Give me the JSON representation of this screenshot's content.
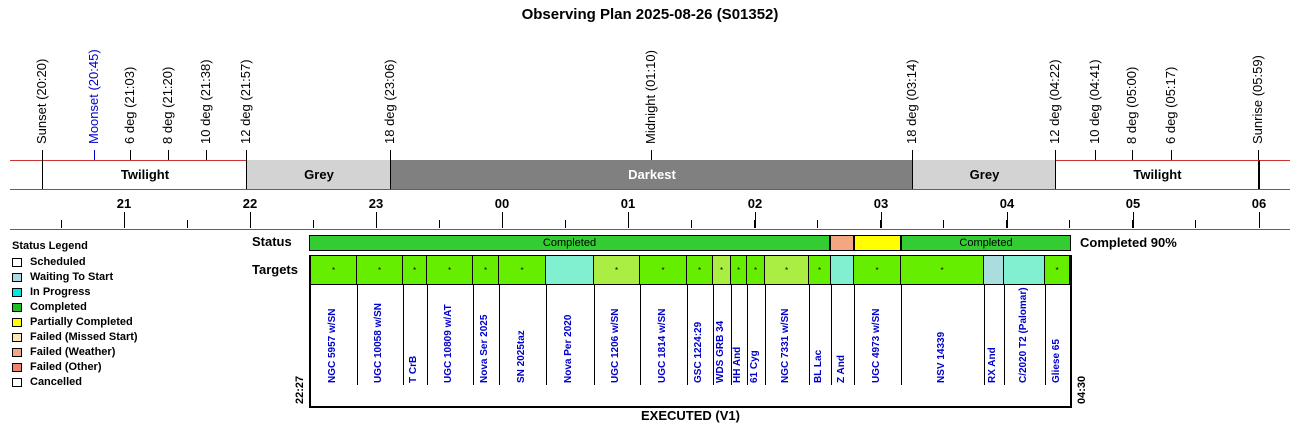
{
  "title": "Observing Plan 2025-08-26 (S01352)",
  "events": [
    {
      "label": "Sunset (20:20)",
      "color": "#000000"
    },
    {
      "label": "Moonset (20:45)",
      "color": "#0000cc"
    },
    {
      "label": "6 deg (21:03)",
      "color": "#000000"
    },
    {
      "label": "8 deg (21:20)",
      "color": "#000000"
    },
    {
      "label": "10 deg (21:38)",
      "color": "#000000"
    },
    {
      "label": "12 deg (21:57)",
      "color": "#000000"
    },
    {
      "label": "18 deg (23:06)",
      "color": "#000000"
    },
    {
      "label": "Midnight (01:10)",
      "color": "#000000"
    },
    {
      "label": "18 deg (03:14)",
      "color": "#000000"
    },
    {
      "label": "12 deg (04:22)",
      "color": "#000000"
    },
    {
      "label": "10 deg (04:41)",
      "color": "#000000"
    },
    {
      "label": "8 deg (05:00)",
      "color": "#000000"
    },
    {
      "label": "6 deg (05:17)",
      "color": "#000000"
    },
    {
      "label": "Sunrise (05:59)",
      "color": "#000000"
    }
  ],
  "bands": [
    {
      "label": "Twilight",
      "color": "#ffffff",
      "text": "#000000"
    },
    {
      "label": "Grey",
      "color": "#d3d3d3",
      "text": "#000000"
    },
    {
      "label": "Darkest",
      "color": "#808080",
      "text": "#ffffff"
    },
    {
      "label": "Grey",
      "color": "#d3d3d3",
      "text": "#000000"
    },
    {
      "label": "Twilight",
      "color": "#ffffff",
      "text": "#000000"
    }
  ],
  "hours": [
    "21",
    "22",
    "23",
    "00",
    "01",
    "02",
    "03",
    "04",
    "05",
    "06"
  ],
  "legend": {
    "title": "Status Legend",
    "items": [
      {
        "label": "Scheduled",
        "color": "#ffffff"
      },
      {
        "label": "Waiting To Start",
        "color": "#add8e6"
      },
      {
        "label": "In Progress",
        "color": "#00e5e5"
      },
      {
        "label": "Completed",
        "color": "#22bb22"
      },
      {
        "label": "Partially Completed",
        "color": "#ffff00"
      },
      {
        "label": "Failed (Missed Start)",
        "color": "#ffe4b5"
      },
      {
        "label": "Failed (Weather)",
        "color": "#f4a582"
      },
      {
        "label": "Failed (Other)",
        "color": "#f08070"
      },
      {
        "label": "Cancelled",
        "color": "#ffffff"
      }
    ]
  },
  "status_row": {
    "label": "Status",
    "summary": "Completed 90%",
    "segments": [
      {
        "label": "Completed",
        "color": "#33cc33"
      },
      {
        "label": "",
        "color": "#f4a582"
      },
      {
        "label": "",
        "color": "#ffff00"
      },
      {
        "label": "Completed",
        "color": "#33cc33"
      }
    ]
  },
  "targets_row": {
    "label": "Targets",
    "marker": "*",
    "colors": {
      "good": "#66ee00",
      "alt": "#aaee44",
      "aqua": "#80f0d0",
      "blue": "#aadddd"
    }
  },
  "targets": [
    {
      "name": "NGC 5957 w/SN",
      "color": "#66ee00",
      "marker": "*"
    },
    {
      "name": "UGC 10058 w/SN",
      "color": "#66ee00",
      "marker": "*"
    },
    {
      "name": "T CrB",
      "color": "#66ee00",
      "marker": "*"
    },
    {
      "name": "UGC 10809 w/AT",
      "color": "#66ee00",
      "marker": "*"
    },
    {
      "name": "Nova Ser 2025",
      "color": "#66ee00",
      "marker": "*"
    },
    {
      "name": "SN 2025taz",
      "color": "#66ee00",
      "marker": "*"
    },
    {
      "name": "Nova Per 2020",
      "color": "#80f0d0",
      "marker": ""
    },
    {
      "name": "UGC 1206 w/SN",
      "color": "#aaee44",
      "marker": "*"
    },
    {
      "name": "UGC 1814 w/SN",
      "color": "#66ee00",
      "marker": "*"
    },
    {
      "name": "GSC 1224:29",
      "color": "#66ee00",
      "marker": "*"
    },
    {
      "name": "WDS GRB 34",
      "color": "#aaee44",
      "marker": "*"
    },
    {
      "name": "HH And",
      "color": "#66ee00",
      "marker": "*"
    },
    {
      "name": "61 Cyg",
      "color": "#66ee00",
      "marker": "*"
    },
    {
      "name": "NGC 7331 w/SN",
      "color": "#aaee44",
      "marker": "*"
    },
    {
      "name": "BL Lac",
      "color": "#66ee00",
      "marker": "*"
    },
    {
      "name": "Z And",
      "color": "#80f0d0",
      "marker": ""
    },
    {
      "name": "UGC 4973 w/SN",
      "color": "#66ee00",
      "marker": "*"
    },
    {
      "name": "NSV 14339",
      "color": "#66ee00",
      "marker": "*"
    },
    {
      "name": "RX And",
      "color": "#aadddd",
      "marker": ""
    },
    {
      "name": "C/2020 T2 (Palomar)",
      "color": "#80f0d0",
      "marker": ""
    },
    {
      "name": "Gliese 65",
      "color": "#66ee00",
      "marker": "*"
    }
  ],
  "start_time": "22:27",
  "end_time": "04:30",
  "footer": "EXECUTED (V1)"
}
